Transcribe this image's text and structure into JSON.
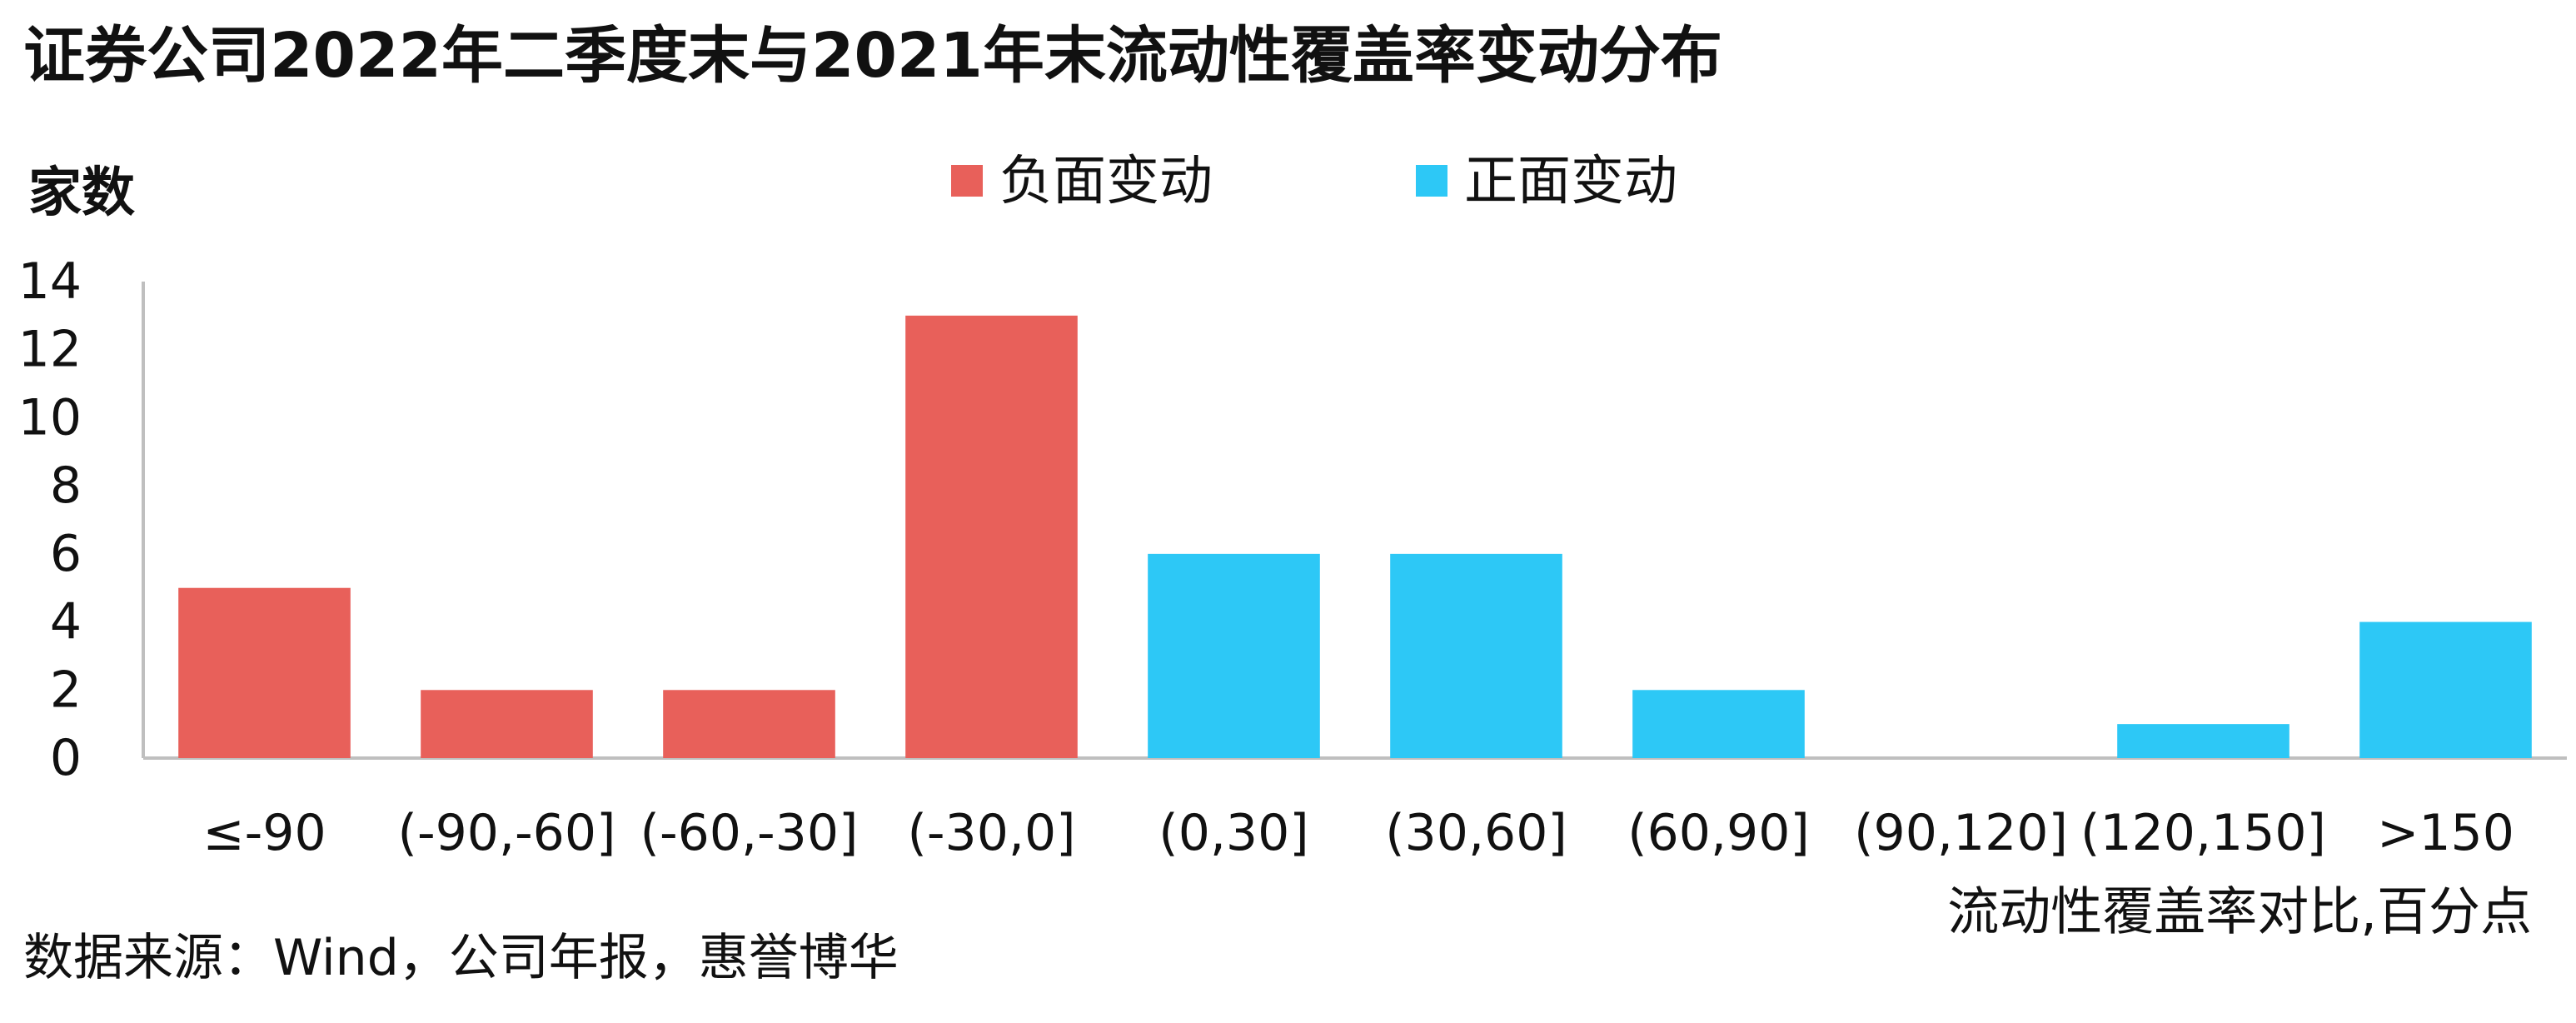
{
  "title": "证券公司2022年二季度末与2021年末流动性覆盖率变动分布",
  "source": "数据来源：Wind，公司年报，惠誉博华",
  "colors": {
    "negative": "#E8605A",
    "positive": "#2DC8F6",
    "axis": "#BFBFBF",
    "text": "#111111"
  },
  "chart_data": {
    "type": "bar",
    "title": "证券公司2022年二季度末与2021年末流动性覆盖率变动分布",
    "ylabel": "家数",
    "xlabel": "流动性覆盖率对比,百分点",
    "ylim": [
      0,
      14
    ],
    "yticks": [
      0,
      2,
      4,
      6,
      8,
      10,
      12,
      14
    ],
    "grid": false,
    "legend_position": "top-center",
    "legend": [
      {
        "name": "负面变动",
        "color": "#E8605A"
      },
      {
        "name": "正面变动",
        "color": "#2DC8F6"
      }
    ],
    "categories": [
      "≤-90",
      "(-90,-60]",
      "(-60,-30]",
      "(-30,0]",
      "(0,30]",
      "(30,60]",
      "(60,90]",
      "(90,120]",
      "(120,150]",
      ">150"
    ],
    "series": [
      {
        "name": "负面变动",
        "values": [
          5,
          2,
          2,
          13,
          null,
          null,
          null,
          null,
          null,
          null
        ]
      },
      {
        "name": "正面变动",
        "values": [
          null,
          null,
          null,
          null,
          6,
          6,
          2,
          0,
          1,
          4
        ]
      }
    ]
  }
}
